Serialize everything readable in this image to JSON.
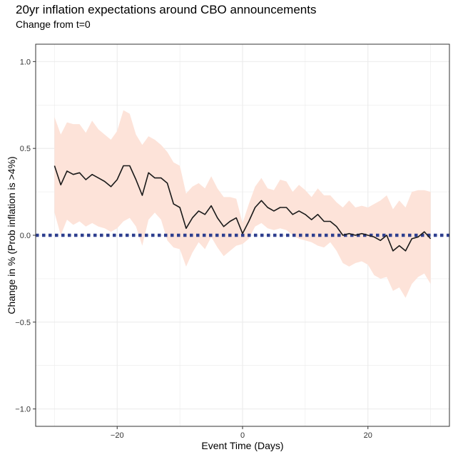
{
  "chart_data": {
    "type": "line",
    "title": "20yr inflation expectations around CBO announcements",
    "subtitle": "Change from t=0",
    "xlabel": "Event Time (Days)",
    "ylabel": "Change in % (Prob inflation is >4%)",
    "xlim": [
      -33,
      33
    ],
    "ylim": [
      -1.1,
      1.1
    ],
    "x_ticks": [
      -20,
      0,
      20
    ],
    "x_tick_labels": [
      "−20",
      "0",
      "20"
    ],
    "y_ticks": [
      -1.0,
      -0.5,
      0.0,
      0.5,
      1.0
    ],
    "y_tick_labels": [
      "−1.0",
      "−0.5",
      "0.0",
      "0.5",
      "1.0"
    ],
    "grid": true,
    "reference_line": {
      "y": 0.0,
      "style": "dotted",
      "color": "#2e3f8f"
    },
    "colors": {
      "line": "#1a1a1a",
      "band": "#fde3d9",
      "grid": "#ebebeb",
      "reference": "#2e3f8f"
    },
    "series": [
      {
        "name": "Change from t=0",
        "x": [
          -30,
          -29,
          -28,
          -27,
          -26,
          -25,
          -24,
          -23,
          -22,
          -21,
          -20,
          -19,
          -18,
          -17,
          -16,
          -15,
          -14,
          -13,
          -12,
          -11,
          -10,
          -9,
          -8,
          -7,
          -6,
          -5,
          -4,
          -3,
          -2,
          -1,
          0,
          1,
          2,
          3,
          4,
          5,
          6,
          7,
          8,
          9,
          10,
          11,
          12,
          13,
          14,
          15,
          16,
          17,
          18,
          19,
          20,
          21,
          22,
          23,
          24,
          25,
          26,
          27,
          28,
          29,
          30
        ],
        "y": [
          0.4,
          0.29,
          0.37,
          0.35,
          0.36,
          0.32,
          0.35,
          0.33,
          0.31,
          0.28,
          0.32,
          0.4,
          0.4,
          0.32,
          0.23,
          0.36,
          0.33,
          0.33,
          0.3,
          0.18,
          0.16,
          0.04,
          0.1,
          0.14,
          0.12,
          0.17,
          0.1,
          0.05,
          0.08,
          0.1,
          0.01,
          0.08,
          0.16,
          0.2,
          0.16,
          0.14,
          0.16,
          0.16,
          0.12,
          0.14,
          0.12,
          0.09,
          0.12,
          0.08,
          0.08,
          0.05,
          0.0,
          0.01,
          0.0,
          0.01,
          0.0,
          -0.01,
          -0.03,
          0.0,
          -0.09,
          -0.06,
          -0.09,
          -0.02,
          -0.01,
          0.02,
          -0.02
        ],
        "lower": [
          0.13,
          0.0,
          0.09,
          0.06,
          0.08,
          0.05,
          0.07,
          0.05,
          0.04,
          0.02,
          0.04,
          0.08,
          0.1,
          0.05,
          -0.06,
          0.09,
          0.13,
          0.09,
          -0.03,
          -0.07,
          -0.08,
          -0.18,
          -0.1,
          -0.04,
          -0.08,
          -0.01,
          -0.07,
          -0.12,
          -0.09,
          -0.06,
          -0.05,
          -0.02,
          0.05,
          0.07,
          0.04,
          0.03,
          0.04,
          0.03,
          0.0,
          -0.02,
          -0.03,
          -0.04,
          -0.06,
          -0.07,
          -0.04,
          -0.09,
          -0.16,
          -0.18,
          -0.16,
          -0.15,
          -0.17,
          -0.23,
          -0.25,
          -0.24,
          -0.32,
          -0.3,
          -0.36,
          -0.28,
          -0.24,
          -0.22,
          -0.28
        ],
        "upper": [
          0.68,
          0.58,
          0.65,
          0.64,
          0.64,
          0.59,
          0.66,
          0.61,
          0.58,
          0.55,
          0.6,
          0.72,
          0.7,
          0.58,
          0.52,
          0.57,
          0.55,
          0.52,
          0.48,
          0.42,
          0.4,
          0.24,
          0.28,
          0.3,
          0.27,
          0.34,
          0.27,
          0.22,
          0.22,
          0.21,
          0.07,
          0.18,
          0.28,
          0.33,
          0.27,
          0.26,
          0.32,
          0.31,
          0.25,
          0.29,
          0.26,
          0.22,
          0.27,
          0.23,
          0.23,
          0.19,
          0.16,
          0.2,
          0.16,
          0.17,
          0.16,
          0.18,
          0.2,
          0.23,
          0.15,
          0.2,
          0.16,
          0.25,
          0.26,
          0.26,
          0.25
        ]
      }
    ]
  }
}
